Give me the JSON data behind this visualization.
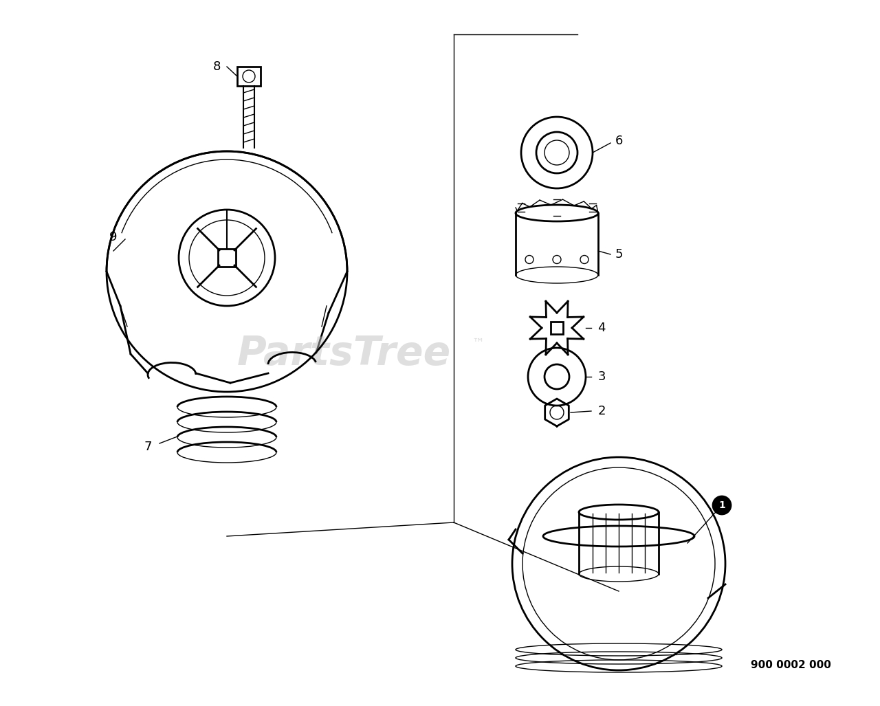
{
  "bg_color": "#ffffff",
  "line_color": "#000000",
  "watermark_color": "#c0c0c0",
  "watermark_text": "PartsTree",
  "watermark_tm": "™",
  "part_number_text": "900 0002 000",
  "label_fontsize": 13,
  "part_number_fontsize": 11,
  "watermark_fontsize": 42
}
